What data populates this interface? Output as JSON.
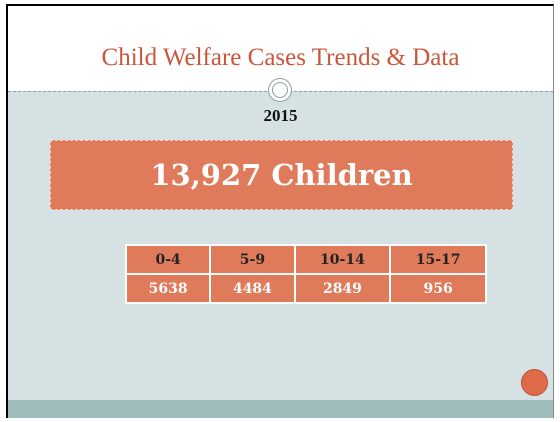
{
  "header": {
    "title": "Child Welfare Cases Trends & Data"
  },
  "year": "2015",
  "headline": "13,927 Children",
  "table": {
    "header": [
      "0-4",
      "5-9",
      "10-14",
      "15-17"
    ],
    "rows": [
      [
        5638,
        4484,
        2849,
        956
      ]
    ]
  }
}
